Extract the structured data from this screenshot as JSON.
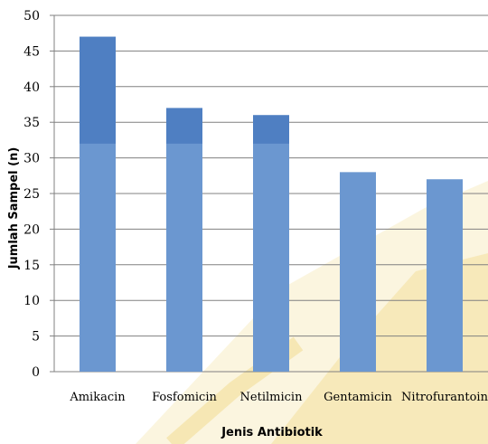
{
  "chart_data": {
    "type": "bar",
    "title": "",
    "xlabel": "Jenis Antibiotik",
    "ylabel": "Jumlah Sampel (n)",
    "categories": [
      "Amikacin",
      "Fosfomicin",
      "Netilmicin",
      "Gentamicin",
      "Nitrofurantoin"
    ],
    "values": [
      47,
      37,
      36,
      28,
      27
    ],
    "ylim": [
      0,
      50
    ],
    "yticks": [
      0,
      5,
      10,
      15,
      20,
      25,
      30,
      35,
      40,
      45,
      50
    ],
    "grid": true,
    "legend": "none",
    "colors": {
      "bar": "#6b97d0",
      "bar_top": "#4f7fc2",
      "grid": "#808080",
      "axis": "#808080",
      "watermark": "#f6e3a6"
    }
  }
}
